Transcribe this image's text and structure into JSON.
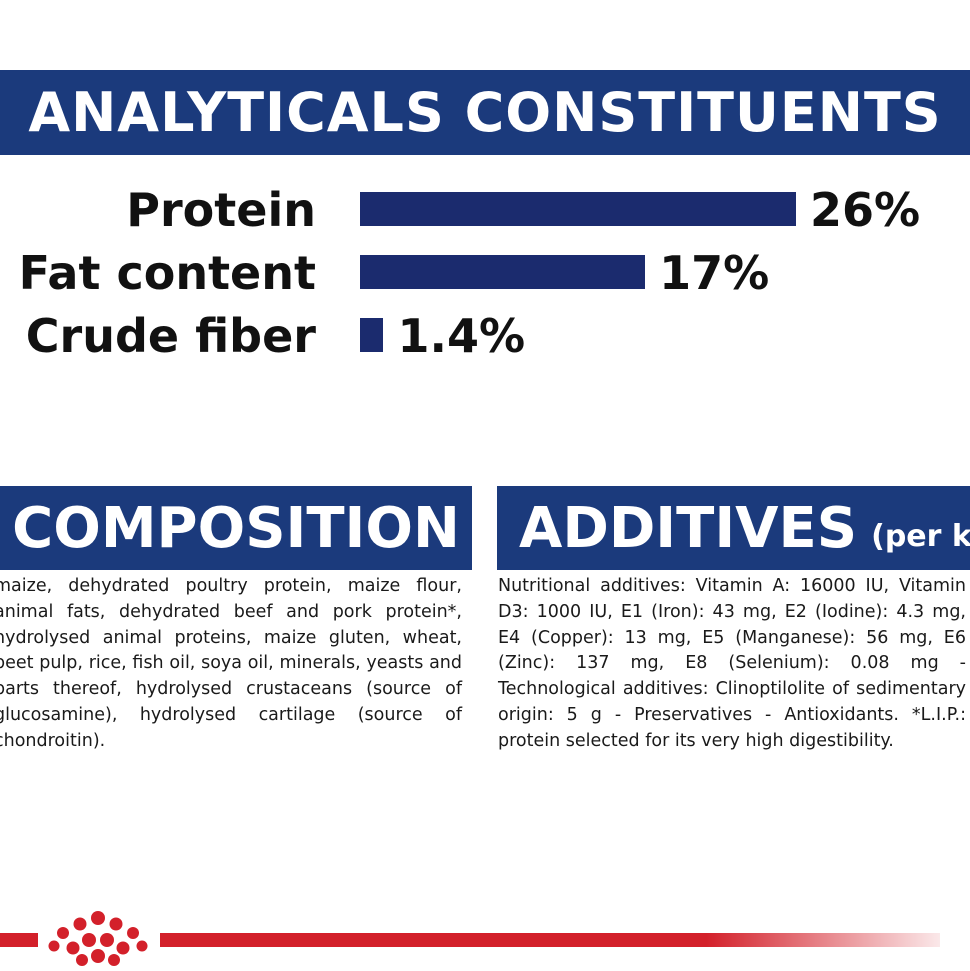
{
  "analytics": {
    "title": "ANALYTICALS CONSTITUENTS",
    "rows": [
      {
        "label": "Protein",
        "value_text": "26%",
        "value": 26
      },
      {
        "label": "Fat content",
        "value_text": "17%",
        "value": 17
      },
      {
        "label": "Crude fiber",
        "value_text": "1.4%",
        "value": 1.4
      }
    ]
  },
  "composition": {
    "title": "COMPOSITION",
    "text": "maize, dehydrated poultry protein, maize flour, animal fats, dehydrated beef and pork protein*, hydrolysed animal proteins, maize gluten, wheat, beet pulp, rice, fish oil, soya oil, minerals, yeasts and parts thereof, hydrolysed crustaceans (source of glucosamine), hydrolysed cartilage (source of chondroitin)."
  },
  "additives": {
    "title": "ADDITIVES",
    "title_suffix": "(per kg)",
    "text": "Nutritional additives: Vitamin A: 16000 IU, Vitamin D3: 1000 IU, E1 (Iron): 43 mg, E2 (Iodine): 4.3 mg, E4 (Copper): 13 mg, E5 (Manganese): 56 mg, E6 (Zinc): 137 mg, E8 (Selenium): 0.08 mg - Technological additives: Clinoptilolite of sedimentary origin: 5 g - Preservatives - Antioxidants. *L.I.P.: protein selected for its very high digestibility."
  },
  "colors": {
    "banner_blue": "#1b3a7c",
    "bar_blue": "#1b2b6e",
    "brand_red": "#d3202a"
  },
  "icons": {
    "logo": "crown-logo-icon"
  }
}
